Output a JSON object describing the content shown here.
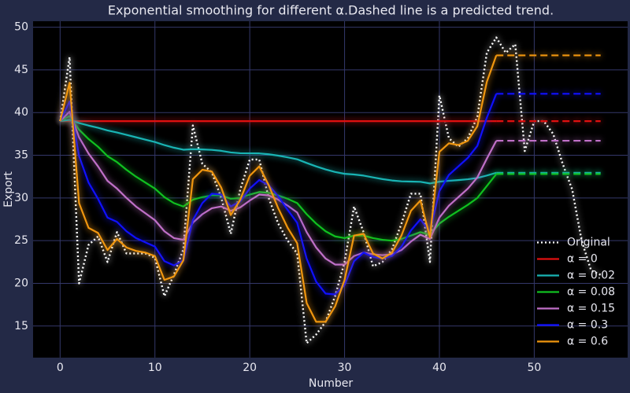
{
  "chart_data": {
    "type": "line",
    "title": "Exponential smoothing for different α.Dashed line is a predicted trend.",
    "xlabel": "Number",
    "ylabel": "Export",
    "xlim": [
      -2.85,
      59.85
    ],
    "ylim": [
      11.3,
      50.7
    ],
    "xticks": [
      0,
      10,
      20,
      30,
      40,
      50
    ],
    "yticks": [
      15,
      20,
      25,
      30,
      35,
      40,
      45,
      50
    ],
    "grid": true,
    "legend": "lower right",
    "x": [
      0,
      1,
      2,
      3,
      4,
      5,
      6,
      7,
      8,
      9,
      10,
      11,
      12,
      13,
      14,
      15,
      16,
      17,
      18,
      19,
      20,
      21,
      22,
      23,
      24,
      25,
      26,
      27,
      28,
      29,
      30,
      31,
      32,
      33,
      34,
      35,
      36,
      37,
      38,
      39,
      40,
      41,
      42,
      43,
      44,
      45,
      46,
      47,
      48,
      49,
      50,
      51,
      52,
      53,
      54,
      55,
      56,
      57
    ],
    "forecast_x": [
      46,
      57
    ],
    "series": [
      {
        "name": "Original",
        "color": "#ffffff",
        "dotted": true,
        "values": [
          39,
          46.5,
          20,
          24.5,
          25.5,
          22.5,
          26,
          23.5,
          23.5,
          23.5,
          23,
          18.5,
          21,
          24,
          38.5,
          34,
          33,
          30,
          25.8,
          31,
          34.5,
          34.5,
          30,
          27,
          25,
          23.5,
          13,
          14,
          15.5,
          18.5,
          22.5,
          29,
          26,
          22,
          22.5,
          24,
          27,
          30.5,
          30.5,
          22.5,
          42,
          37,
          36,
          37,
          39.5,
          47,
          48.8,
          47,
          48,
          35.5,
          39,
          39,
          37.5,
          34,
          31,
          25,
          21.5,
          21
        ]
      },
      {
        "name": "α = 0",
        "color": "#e01010",
        "values": [
          39,
          39,
          39,
          39,
          39,
          39,
          39,
          39,
          39,
          39,
          39,
          39,
          39,
          39,
          39,
          39,
          39,
          39,
          39,
          39,
          39,
          39,
          39,
          39,
          39,
          39,
          39,
          39,
          39,
          39,
          39,
          39,
          39,
          39,
          39,
          39,
          39,
          39,
          39,
          39,
          39,
          39,
          39,
          39,
          39,
          39,
          39,
          null,
          null,
          null,
          null,
          null,
          null,
          null,
          null,
          null,
          null,
          null
        ],
        "forecast": [
          39,
          39
        ]
      },
      {
        "name": "α = 0.02",
        "color": "#19b4b4",
        "values": [
          39,
          39.15,
          38.77,
          38.48,
          38.22,
          37.91,
          37.67,
          37.39,
          37.11,
          36.83,
          36.55,
          36.19,
          35.89,
          35.65,
          35.71,
          35.68,
          35.63,
          35.52,
          35.33,
          35.24,
          35.23,
          35.22,
          35.12,
          34.96,
          34.76,
          34.53,
          34.1,
          33.7,
          33.34,
          33.04,
          32.83,
          32.75,
          32.62,
          32.41,
          32.21,
          32.05,
          31.95,
          31.92,
          31.89,
          31.7,
          31.91,
          32.01,
          32.09,
          32.19,
          32.34,
          32.63,
          32.95,
          null,
          null,
          null,
          null,
          null,
          null,
          null,
          null,
          null,
          null,
          null
        ],
        "forecast": [
          32.95,
          32.95
        ]
      },
      {
        "name": "α = 0.08",
        "color": "#10c020",
        "values": [
          39,
          39.6,
          38,
          36.9,
          36,
          34.9,
          34.2,
          33.3,
          32.5,
          31.8,
          31.1,
          30.1,
          29.4,
          29,
          29.8,
          30.1,
          30.3,
          30.3,
          29.9,
          30,
          30.4,
          30.7,
          30.6,
          30.3,
          29.9,
          29.4,
          28.1,
          27,
          26.1,
          25.5,
          25.3,
          25.6,
          25.6,
          25.3,
          25.1,
          25,
          25.2,
          25.6,
          26,
          25.7,
          27,
          27.8,
          28.5,
          29.2,
          30,
          31.4,
          32.8,
          null,
          null,
          null,
          null,
          null,
          null,
          null,
          null,
          null,
          null,
          null
        ],
        "forecast": [
          32.8,
          32.8
        ]
      },
      {
        "name": "α = 0.15",
        "color": "#c070c8",
        "values": [
          39,
          40.1,
          37.1,
          35.2,
          33.7,
          32,
          31.1,
          30,
          29,
          28.2,
          27.4,
          26.1,
          25.3,
          25.1,
          27.1,
          28.1,
          28.8,
          29,
          28.5,
          28.9,
          29.7,
          30.4,
          30.3,
          29.8,
          29.1,
          28.3,
          26,
          24.2,
          22.9,
          22.2,
          22.2,
          23.2,
          23.6,
          23.4,
          23.3,
          23.4,
          23.9,
          24.9,
          25.7,
          25.2,
          27.7,
          29.1,
          30.1,
          31.1,
          32.4,
          34.6,
          36.7,
          null,
          null,
          null,
          null,
          null,
          null,
          null,
          null,
          null,
          null,
          null
        ],
        "forecast": [
          36.7,
          36.7
        ]
      },
      {
        "name": "α = 0.3",
        "color": "#1010ff",
        "values": [
          39,
          41.3,
          34.9,
          31.8,
          29.9,
          27.7,
          27.2,
          26.1,
          25.3,
          24.8,
          24.3,
          22.6,
          22.1,
          22.7,
          27.4,
          29.4,
          30.5,
          30.4,
          29,
          29.6,
          31.1,
          32.1,
          31.5,
          30.2,
          28.6,
          27.1,
          22.9,
          20.2,
          18.8,
          18.7,
          19.8,
          22.6,
          23.6,
          23.1,
          22.9,
          23.2,
          24.3,
          26.2,
          27.5,
          26,
          30.8,
          32.7,
          33.7,
          34.7,
          36.1,
          39.4,
          42.2,
          null,
          null,
          null,
          null,
          null,
          null,
          null,
          null,
          null,
          null,
          null
        ],
        "forecast": [
          42.2,
          42.2
        ]
      },
      {
        "name": "α = 0.6",
        "color": "#f0960f",
        "values": [
          39,
          43.5,
          29.4,
          26.5,
          25.9,
          23.9,
          25.2,
          24.2,
          23.8,
          23.6,
          23.2,
          20.4,
          20.8,
          22.7,
          32.2,
          33.3,
          33.1,
          31.2,
          28,
          29.8,
          32.6,
          33.7,
          31.5,
          28.8,
          26.5,
          24.7,
          17.7,
          15.5,
          15.5,
          17.3,
          20.4,
          25.6,
          25.8,
          23.5,
          22.9,
          23.6,
          25.6,
          28.5,
          29.7,
          25.4,
          35.4,
          36.4,
          36.2,
          36.7,
          38.4,
          43.6,
          46.7,
          null,
          null,
          null,
          null,
          null,
          null,
          null,
          null,
          null,
          null,
          null
        ],
        "forecast": [
          46.7,
          46.7
        ]
      }
    ]
  }
}
